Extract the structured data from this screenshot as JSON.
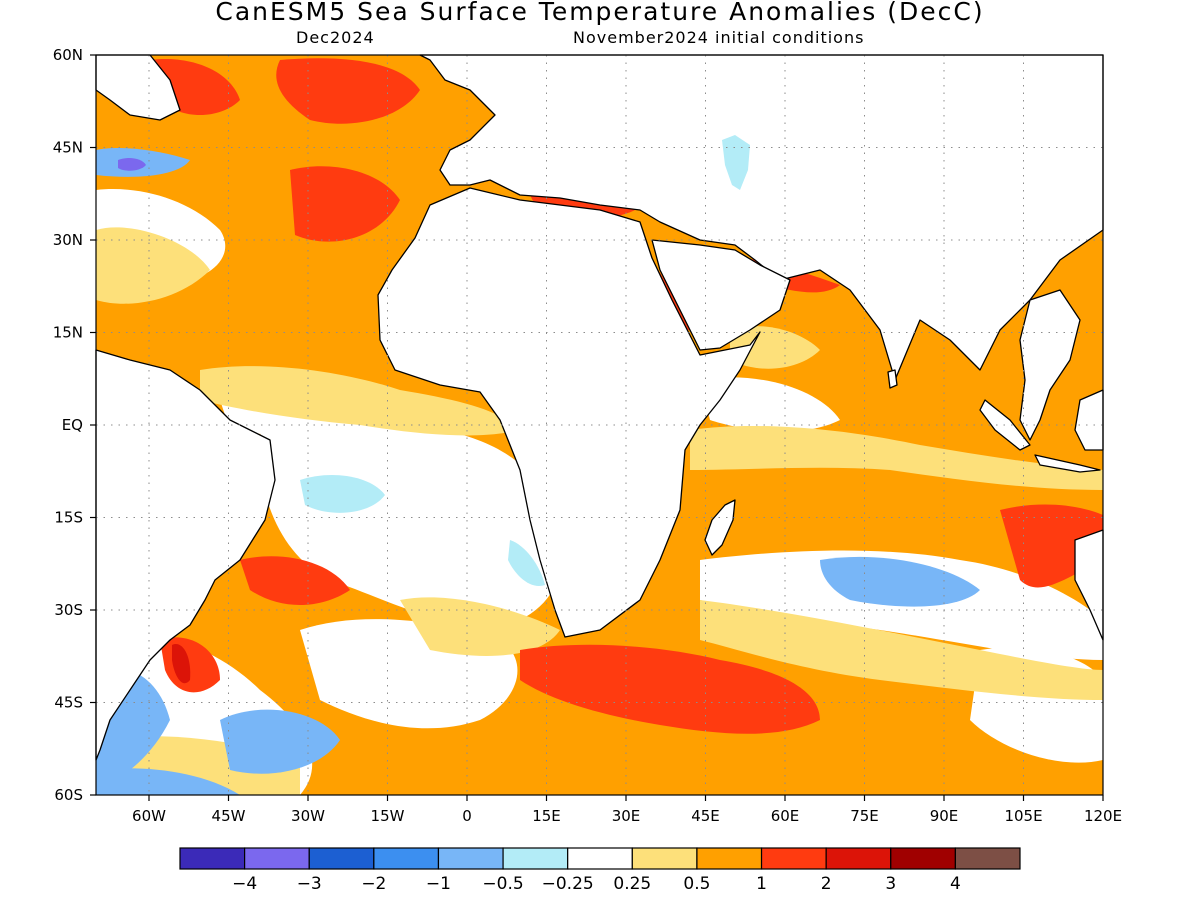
{
  "header": {
    "title": "CanESM5 Sea Surface Temperature Anomalies (DecC)",
    "valid_month": "Dec2024",
    "init_conditions": "November2024 initial conditions"
  },
  "map": {
    "lon_range": [
      -70,
      120
    ],
    "lat_range": [
      -60,
      60
    ],
    "lat_ticks": [
      {
        "lat": 60,
        "label": "60N"
      },
      {
        "lat": 45,
        "label": "45N"
      },
      {
        "lat": 30,
        "label": "30N"
      },
      {
        "lat": 15,
        "label": "15N"
      },
      {
        "lat": 0,
        "label": "EQ"
      },
      {
        "lat": -15,
        "label": "15S"
      },
      {
        "lat": -30,
        "label": "30S"
      },
      {
        "lat": -45,
        "label": "45S"
      },
      {
        "lat": -60,
        "label": "60S"
      }
    ],
    "lon_ticks": [
      {
        "lon": -60,
        "label": "60W"
      },
      {
        "lon": -45,
        "label": "45W"
      },
      {
        "lon": -30,
        "label": "30W"
      },
      {
        "lon": -15,
        "label": "15W"
      },
      {
        "lon": 0,
        "label": "0"
      },
      {
        "lon": 15,
        "label": "15E"
      },
      {
        "lon": 30,
        "label": "30E"
      },
      {
        "lon": 45,
        "label": "45E"
      },
      {
        "lon": 60,
        "label": "60E"
      },
      {
        "lon": 75,
        "label": "75E"
      },
      {
        "lon": 90,
        "label": "90E"
      },
      {
        "lon": 105,
        "label": "105E"
      },
      {
        "lon": 120,
        "label": "120E"
      }
    ]
  },
  "colorbar": {
    "colors": [
      "#3b2ab8",
      "#7b68ee",
      "#1c5fd2",
      "#3c8ff0",
      "#78b6f7",
      "#b3ecf7",
      "#ffffff",
      "#fde07a",
      "#ffa000",
      "#ff3b10",
      "#dc1408",
      "#a00000",
      "#7d4f45"
    ],
    "labels": [
      "−4",
      "−3",
      "−2",
      "−1",
      "−0.5",
      "−0.25",
      "0.25",
      "0.5",
      "1",
      "2",
      "3",
      "4"
    ]
  },
  "colors": {
    "ocean_base": "#ffa000",
    "neutral": "#ffffff",
    "weak_warm": "#fde07a",
    "warm": "#ff3b10",
    "strong_warm": "#dc1408",
    "very_strong_warm": "#a00000",
    "weak_cool": "#b3ecf7",
    "cool": "#78b6f7",
    "mod_cool": "#3c8ff0",
    "strong_cool": "#1c5fd2"
  }
}
